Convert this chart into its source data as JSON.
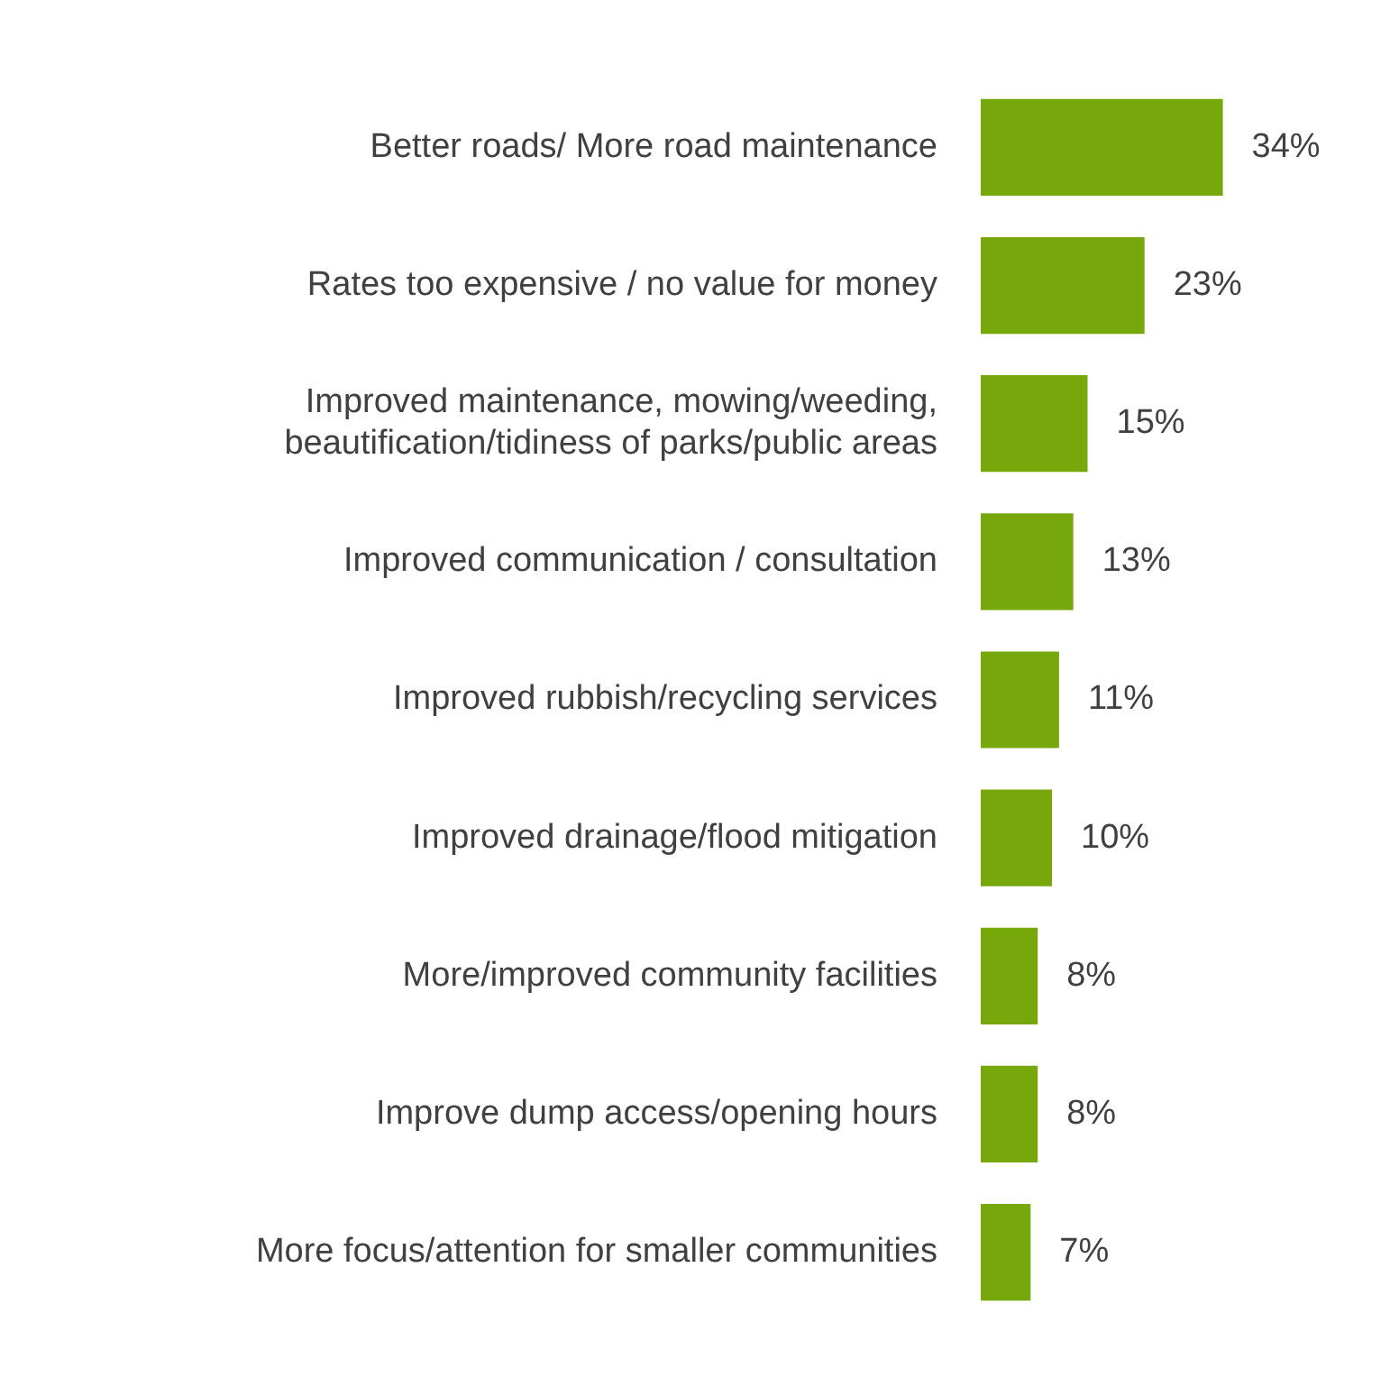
{
  "chart_data": {
    "type": "bar",
    "orientation": "horizontal",
    "categories": [
      "Better roads/ More road maintenance",
      "Rates too expensive / no value for money",
      "Improved maintenance, mowing/weeding, beautification/tidiness of parks/public areas",
      "Improved communication / consultation",
      "Improved rubbish/recycling services",
      "Improved drainage/flood mitigation",
      "More/improved community facilities",
      "Improve dump access/opening hours",
      "More focus/attention for smaller communities"
    ],
    "values": [
      34,
      23,
      15,
      13,
      11,
      10,
      8,
      8,
      7
    ],
    "value_labels": [
      "34%",
      "23%",
      "15%",
      "13%",
      "11%",
      "10%",
      "8%",
      "8%",
      "7%"
    ],
    "color": "#76a80b",
    "grid": false,
    "legend": false,
    "tick_labels": "y"
  }
}
